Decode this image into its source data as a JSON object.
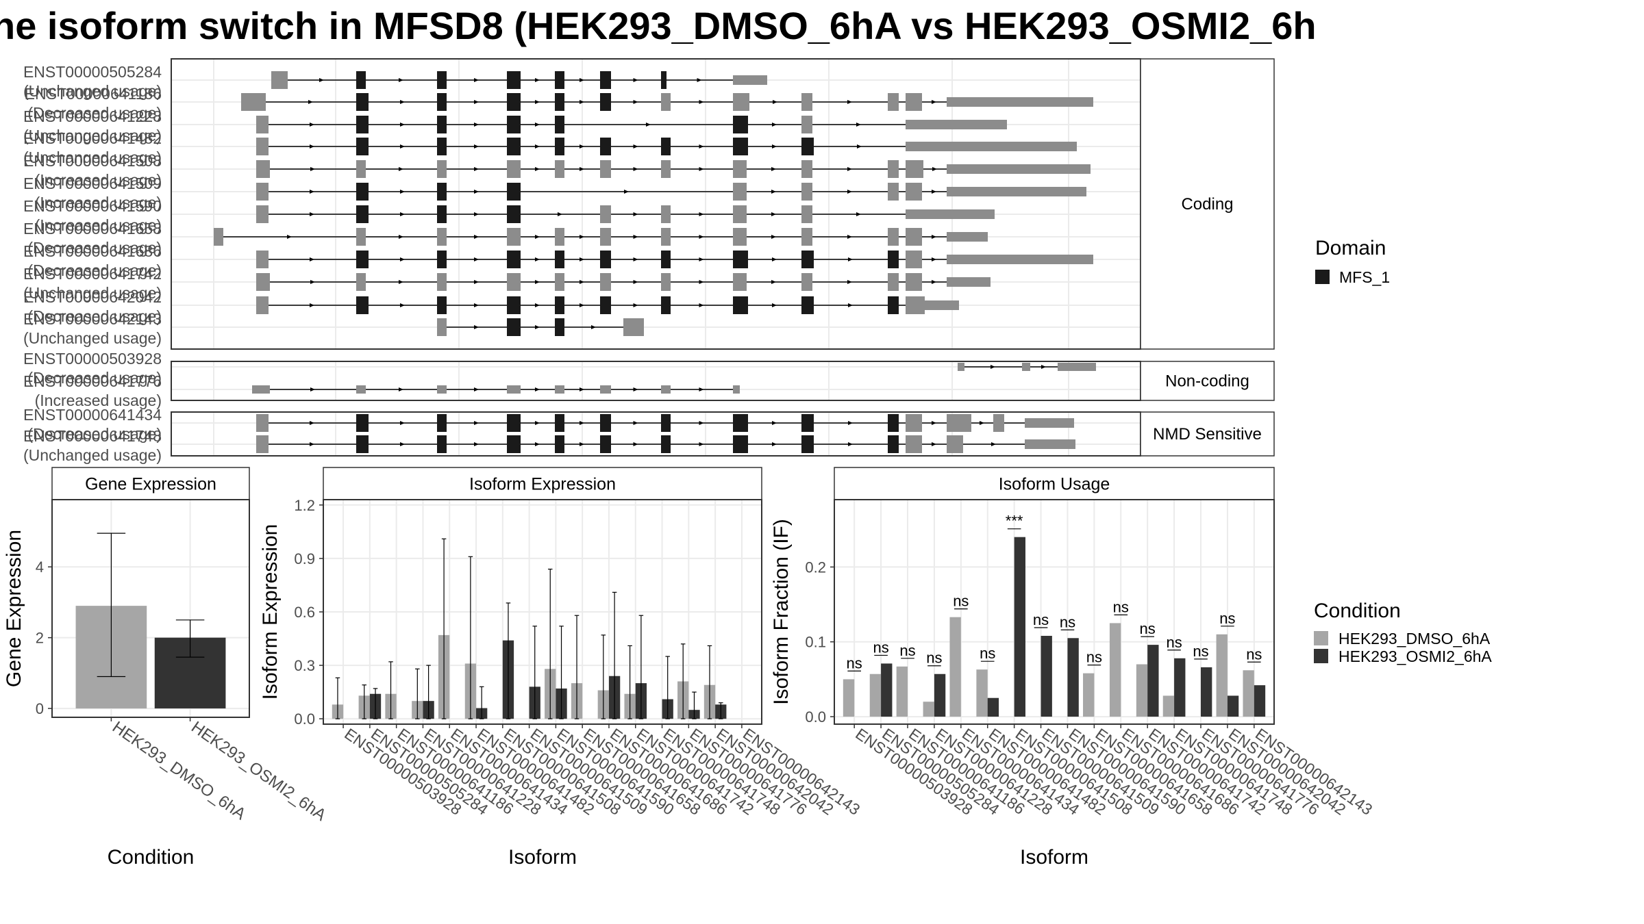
{
  "title": "he isoform switch in MFSD8 (HEK293_DMSO_6hA vs HEK293_OSMI2_6h",
  "colors": {
    "dmso": "#a6a6a6",
    "osmi": "#333333",
    "noncoding": "#8c8c8c",
    "domain": "#1a1a1a",
    "frame": "#333333",
    "grid": "#ebebeb",
    "strip": "#ffffff"
  },
  "domain_legend": {
    "title": "Domain",
    "item": "MFS_1"
  },
  "condition_legend": {
    "title": "Condition",
    "items": [
      "HEK293_DMSO_6hA",
      "HEK293_OSMI2_6hA"
    ]
  },
  "structure": {
    "groups": [
      {
        "label": "Coding",
        "tracks": [
          {
            "name": "ENST00000505284",
            "status": "(Unchanged usage)"
          },
          {
            "name": "ENST00000641186",
            "status": "(Decreased usage)"
          },
          {
            "name": "ENST00000641228",
            "status": "(Unchanged usage)"
          },
          {
            "name": "ENST00000641482",
            "status": "(Unchanged usage)"
          },
          {
            "name": "ENST00000641508",
            "status": "(Increased usage)"
          },
          {
            "name": "ENST00000641509",
            "status": "(Increased usage)"
          },
          {
            "name": "ENST00000641590",
            "status": "(Increased usage)"
          },
          {
            "name": "ENST00000641658",
            "status": "(Decreased usage)"
          },
          {
            "name": "ENST00000641686",
            "status": "(Decreased usage)"
          },
          {
            "name": "ENST00000641742",
            "status": "(Unchanged usage)"
          },
          {
            "name": "ENST00000642042",
            "status": "(Decreased usage)"
          },
          {
            "name": "ENST00000642143",
            "status": "(Unchanged usage)"
          }
        ]
      },
      {
        "label": "Non-coding",
        "tracks": [
          {
            "name": "ENST00000503928",
            "status": "(Decreased usage)"
          },
          {
            "name": "ENST00000641776",
            "status": "(Increased usage)"
          }
        ]
      },
      {
        "label": "NMD Sensitive",
        "tracks": [
          {
            "name": "ENST00000641434",
            "status": "(Decreased usage)"
          },
          {
            "name": "ENST00000641748",
            "status": "(Unchanged usage)"
          }
        ]
      }
    ]
  },
  "chart_data": [
    {
      "type": "bar",
      "title": "Gene Expression",
      "xlabel": "Condition",
      "ylabel": "Gene Expression",
      "categories": [
        "HEK293_DMSO_6hA",
        "HEK293_OSMI2_6hA"
      ],
      "values": [
        2.9,
        2.0
      ],
      "error_low": [
        0.9,
        1.45
      ],
      "error_high": [
        4.95,
        2.5
      ],
      "ylim": [
        -0.25,
        5.9
      ],
      "yticks": [
        "0",
        "2",
        "4"
      ],
      "grid": true
    },
    {
      "type": "bar",
      "title": "Isoform Expression",
      "xlabel": "Isoform",
      "ylabel": "Isoform Expression",
      "categories": [
        "ENST00000503928",
        "ENST00000505284",
        "ENST00000641186",
        "ENST00000641228",
        "ENST00000641434",
        "ENST00000641482",
        "ENST00000641508",
        "ENST00000641509",
        "ENST00000641590",
        "ENST00000641658",
        "ENST00000641686",
        "ENST00000641742",
        "ENST00000641748",
        "ENST00000641776",
        "ENST00000642042",
        "ENST00000642143"
      ],
      "series": [
        {
          "name": "HEK293_DMSO_6hA",
          "values": [
            0.08,
            0.13,
            0.14,
            0.1,
            0.47,
            0.31,
            0.0,
            0.0,
            0.28,
            0.2,
            0.16,
            0.14,
            0.0,
            0.21,
            0.19,
            0.0
          ],
          "error_high": [
            0.23,
            0.19,
            0.32,
            0.28,
            1.01,
            0.91,
            0.0,
            0.0,
            0.84,
            0.58,
            0.47,
            0.41,
            0.0,
            0.42,
            0.41,
            0.0
          ]
        },
        {
          "name": "HEK293_OSMI2_6hA",
          "values": [
            0.0,
            0.14,
            0.0,
            0.1,
            0.0,
            0.06,
            0.44,
            0.18,
            0.17,
            0.0,
            0.24,
            0.2,
            0.11,
            0.05,
            0.08,
            0.0
          ],
          "error_high": [
            0.0,
            0.17,
            0.0,
            0.3,
            0.0,
            0.18,
            0.65,
            0.52,
            0.52,
            0.0,
            0.71,
            0.58,
            0.35,
            0.15,
            0.09,
            0.0
          ]
        }
      ],
      "ylim": [
        -0.03,
        1.23
      ],
      "yticks": [
        "0.0",
        "0.3",
        "0.6",
        "0.9",
        "1.2"
      ],
      "grid": true
    },
    {
      "type": "bar",
      "title": "Isoform Usage",
      "xlabel": "Isoform",
      "ylabel": "Isoform Fraction (IF)",
      "categories": [
        "ENST00000503928",
        "ENST00000505284",
        "ENST00000641186",
        "ENST00000641228",
        "ENST00000641434",
        "ENST00000641482",
        "ENST00000641508",
        "ENST00000641509",
        "ENST00000641590",
        "ENST00000641658",
        "ENST00000641686",
        "ENST00000641742",
        "ENST00000641748",
        "ENST00000641776",
        "ENST00000642042",
        "ENST00000642143"
      ],
      "series": [
        {
          "name": "HEK293_DMSO_6hA",
          "values": [
            0.05,
            0.057,
            0.067,
            0.02,
            0.133,
            0.063,
            0.0,
            0.0,
            0.0,
            0.058,
            0.125,
            0.07,
            0.028,
            0.0,
            0.11,
            0.062
          ]
        },
        {
          "name": "HEK293_OSMI2_6hA",
          "values": [
            0.0,
            0.071,
            0.0,
            0.057,
            0.0,
            0.025,
            0.24,
            0.108,
            0.105,
            0.0,
            0.0,
            0.096,
            0.078,
            0.066,
            0.028,
            0.042
          ]
        }
      ],
      "annotations": [
        "ns",
        "ns",
        "ns",
        "ns",
        "ns",
        "ns",
        "***",
        "ns",
        "ns",
        "ns",
        "ns",
        "ns",
        "ns",
        "ns",
        "ns",
        "ns"
      ],
      "ylim": [
        -0.01,
        0.29
      ],
      "yticks": [
        "0.0",
        "0.1",
        "0.2"
      ],
      "grid": true
    }
  ]
}
